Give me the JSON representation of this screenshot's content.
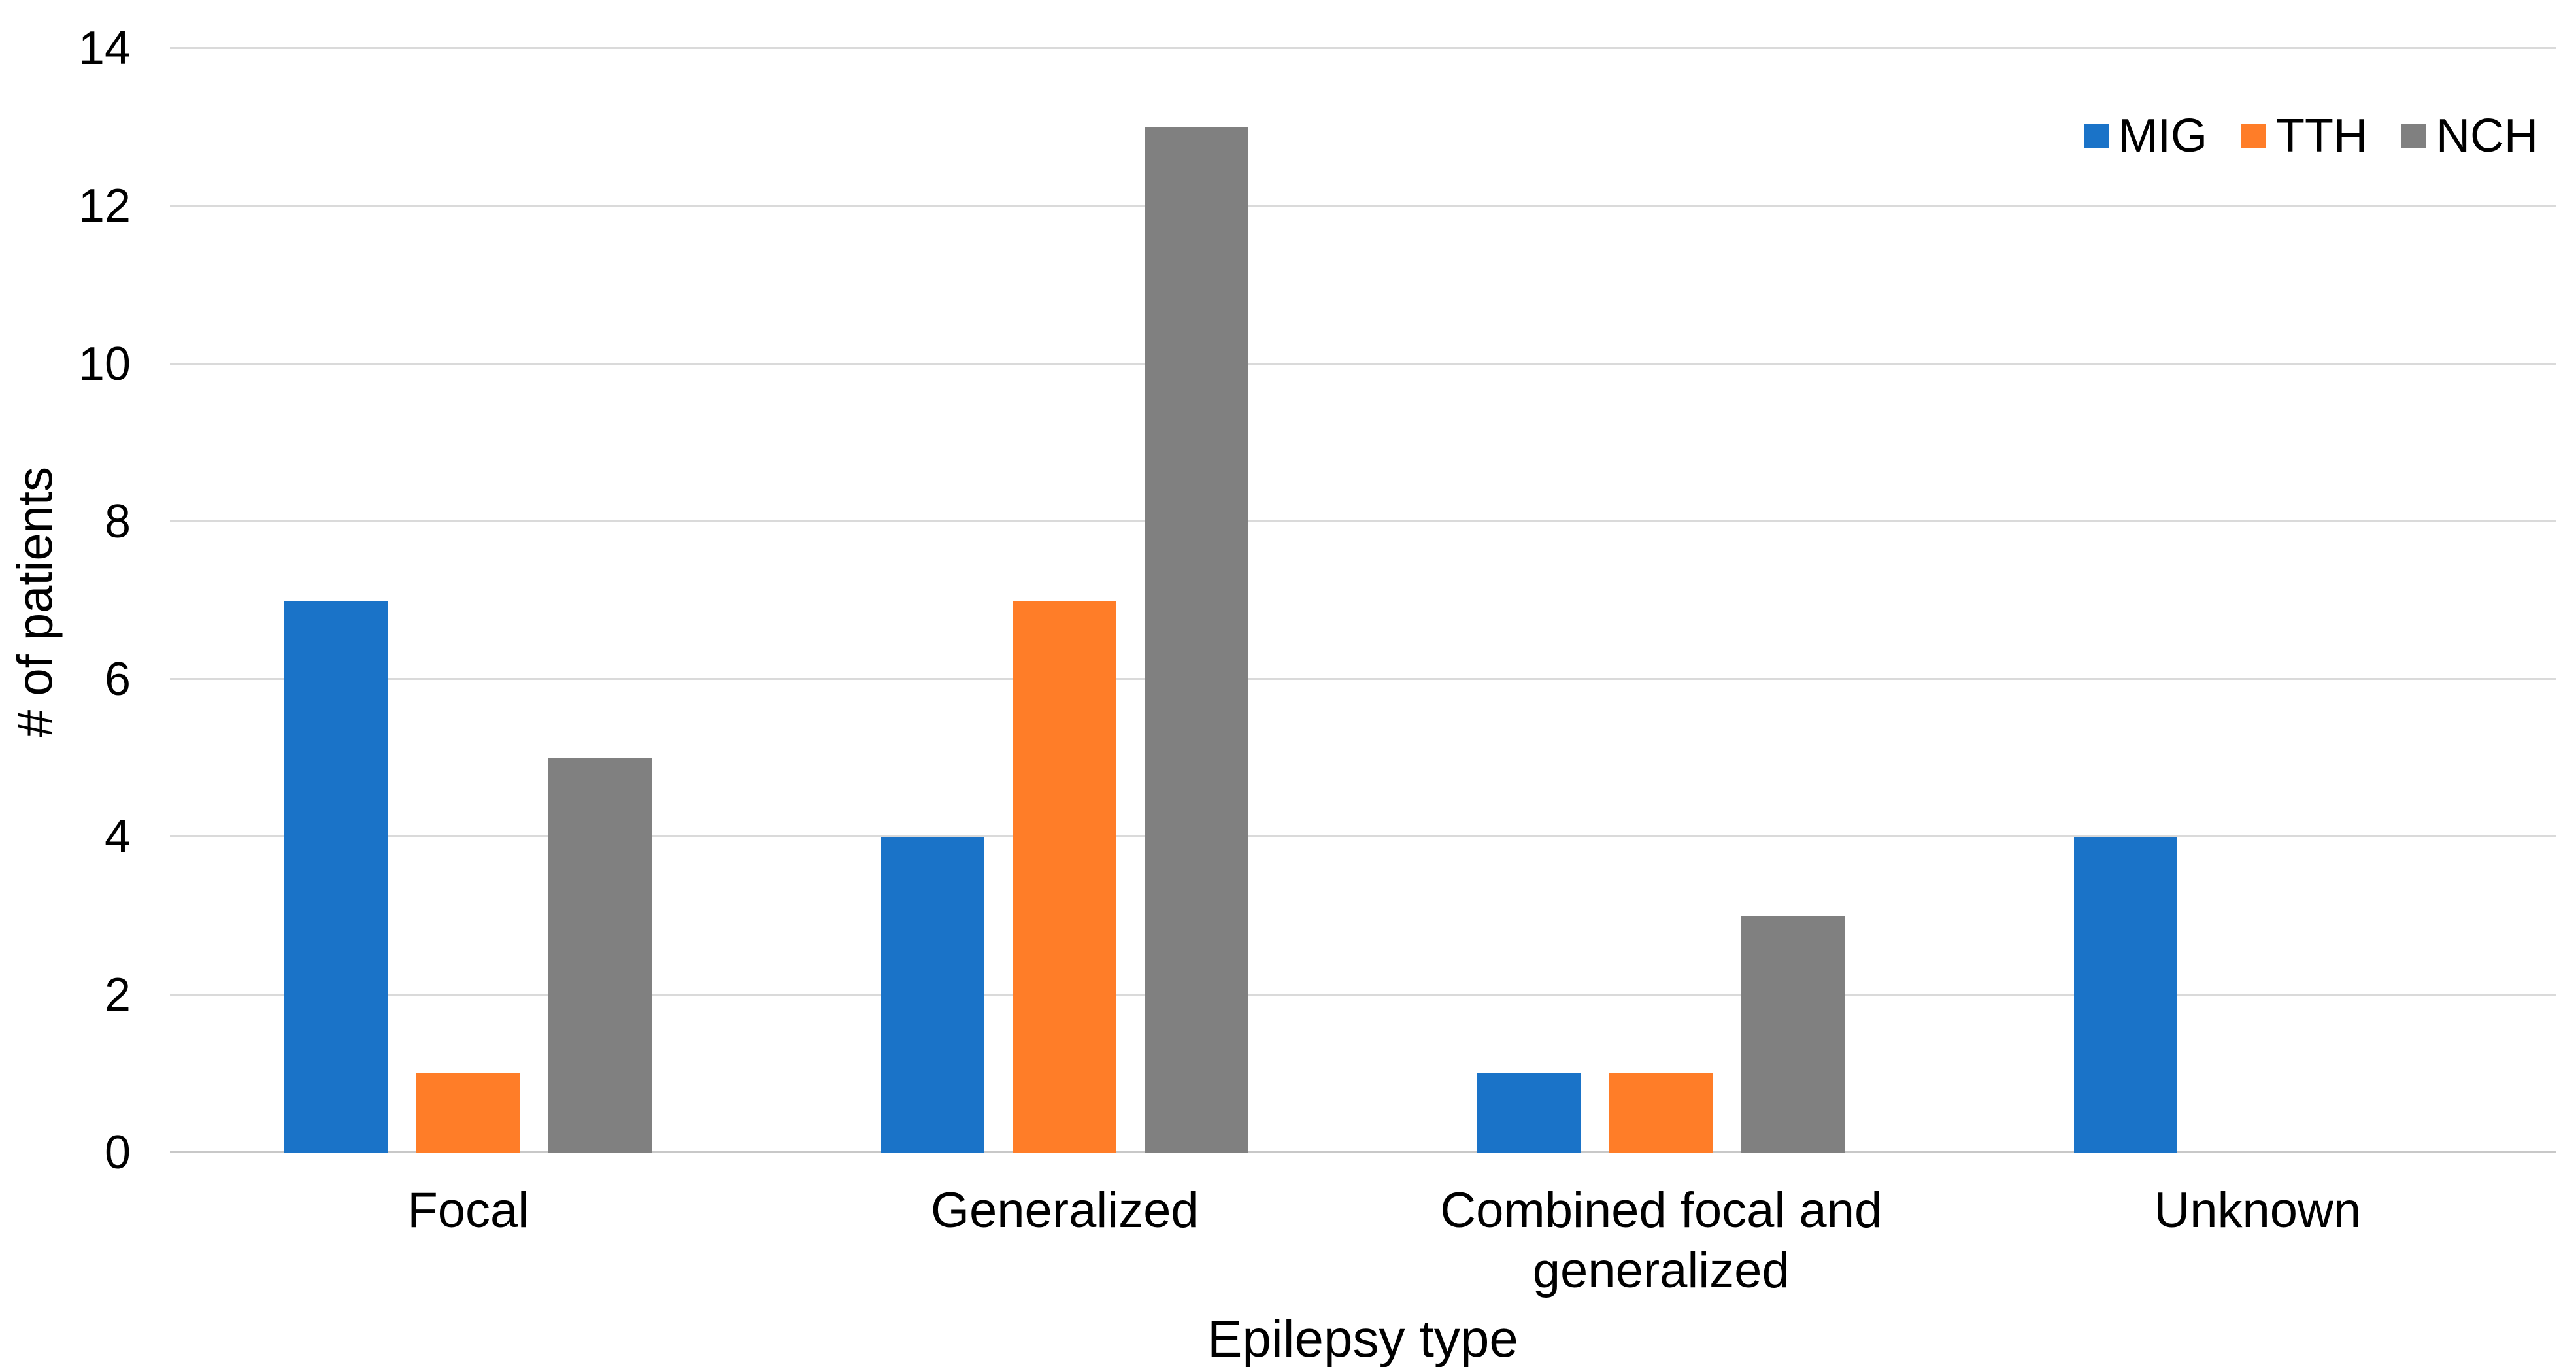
{
  "chart_data": {
    "type": "bar",
    "title": "",
    "xlabel": "Epilepsy type",
    "ylabel": "# of patients",
    "categories": [
      "Focal",
      "Generalized",
      "Combined focal and generalized",
      "Unknown"
    ],
    "series": [
      {
        "name": "MIG",
        "color": "#1A73C8",
        "values": [
          7,
          4,
          1,
          4
        ]
      },
      {
        "name": "TTH",
        "color": "#FF7D28",
        "values": [
          1,
          7,
          1,
          0
        ]
      },
      {
        "name": "NCH",
        "color": "#808080",
        "values": [
          5,
          13,
          3,
          0
        ]
      }
    ],
    "ylim": [
      0,
      14
    ],
    "yticks": [
      0,
      2,
      4,
      6,
      8,
      10,
      12,
      14
    ],
    "grid": "horizontal",
    "gridline_color": "#DADADA",
    "axis_line_color": "#C8C8C8",
    "background": "#FFFFFF",
    "text_color": "#000000",
    "legend": {
      "position": "top-right",
      "orientation": "horizontal",
      "labels": [
        "MIG",
        "TTH",
        "NCH"
      ]
    }
  }
}
